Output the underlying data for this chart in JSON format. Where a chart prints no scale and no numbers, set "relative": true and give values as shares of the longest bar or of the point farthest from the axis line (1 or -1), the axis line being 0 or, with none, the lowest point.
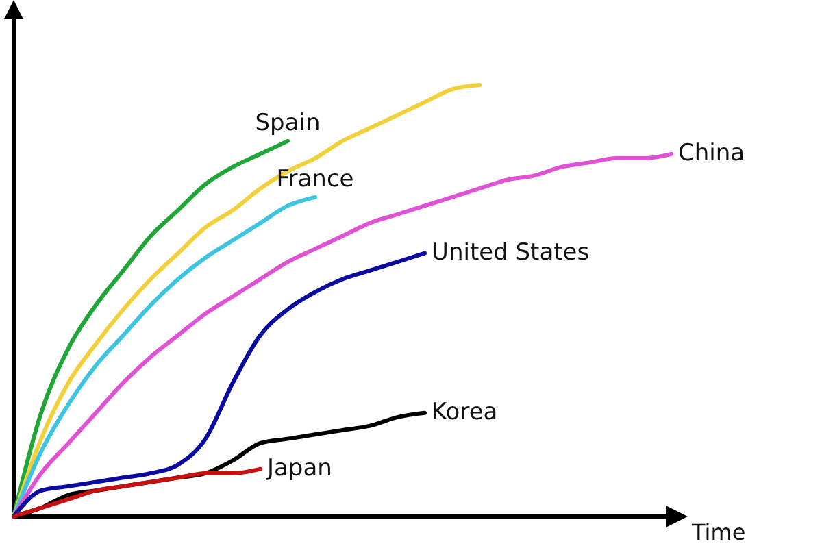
{
  "chart_data": {
    "type": "line",
    "relative": true,
    "xlabel": "Time",
    "line_style": "solid",
    "marker": "none",
    "categories": [
      null,
      null,
      null,
      null,
      null,
      null,
      null,
      null,
      null,
      null,
      null,
      null,
      null,
      null,
      null,
      null,
      null,
      null,
      null,
      null,
      null,
      null,
      null,
      null,
      null
    ],
    "series": [
      {
        "name": "Spain",
        "color": "#1fa637",
        "values": [
          0,
          0.24,
          0.39,
          0.49,
          0.57,
          0.65,
          0.71,
          0.77,
          0.81,
          0.84,
          0.87,
          null,
          null,
          null,
          null,
          null,
          null,
          null,
          null,
          null,
          null,
          null,
          null,
          null,
          null
        ]
      },
      {
        "color": "#f2d03b",
        "values": [
          0,
          0.18,
          0.31,
          0.4,
          0.48,
          0.55,
          0.61,
          0.67,
          0.71,
          0.76,
          0.8,
          0.83,
          0.87,
          0.9,
          0.93,
          0.96,
          0.99,
          1,
          null,
          null,
          null,
          null,
          null,
          null,
          null
        ]
      },
      {
        "name": "France",
        "color": "#3cc4e0",
        "values": [
          0,
          0.15,
          0.26,
          0.35,
          0.42,
          0.49,
          0.55,
          0.6,
          0.64,
          0.68,
          0.72,
          0.74,
          null,
          null,
          null,
          null,
          null,
          null,
          null,
          null,
          null,
          null,
          null,
          null,
          null
        ]
      },
      {
        "name": "China",
        "color": "#e052d4",
        "values": [
          0,
          0.1,
          0.17,
          0.24,
          0.31,
          0.37,
          0.42,
          0.47,
          0.51,
          0.55,
          0.59,
          0.62,
          0.65,
          0.68,
          0.7,
          0.72,
          0.74,
          0.76,
          0.78,
          0.79,
          0.81,
          0.82,
          0.83,
          0.83,
          0.84
        ]
      },
      {
        "name": "United States",
        "color": "#0a0aa0",
        "values": [
          0,
          0.06,
          0.07,
          0.08,
          0.09,
          0.1,
          0.12,
          0.18,
          0.31,
          0.42,
          0.48,
          0.52,
          0.55,
          0.57,
          0.59,
          0.61,
          null,
          null,
          null,
          null,
          null,
          null,
          null,
          null,
          null
        ]
      },
      {
        "name": "Korea",
        "color": "#000000",
        "values": [
          0,
          0.02,
          0.05,
          0.06,
          0.07,
          0.08,
          0.09,
          0.1,
          0.13,
          0.17,
          0.18,
          0.19,
          0.2,
          0.21,
          0.23,
          0.24,
          null,
          null,
          null,
          null,
          null,
          null,
          null,
          null,
          null
        ]
      },
      {
        "name": "Japan",
        "color": "#c81010",
        "values": [
          0,
          0.02,
          0.04,
          0.06,
          0.07,
          0.08,
          0.09,
          0.1,
          0.1,
          0.11,
          null,
          null,
          null,
          null,
          null,
          null,
          null,
          null,
          null,
          null,
          null,
          null,
          null,
          null,
          null
        ]
      }
    ]
  }
}
